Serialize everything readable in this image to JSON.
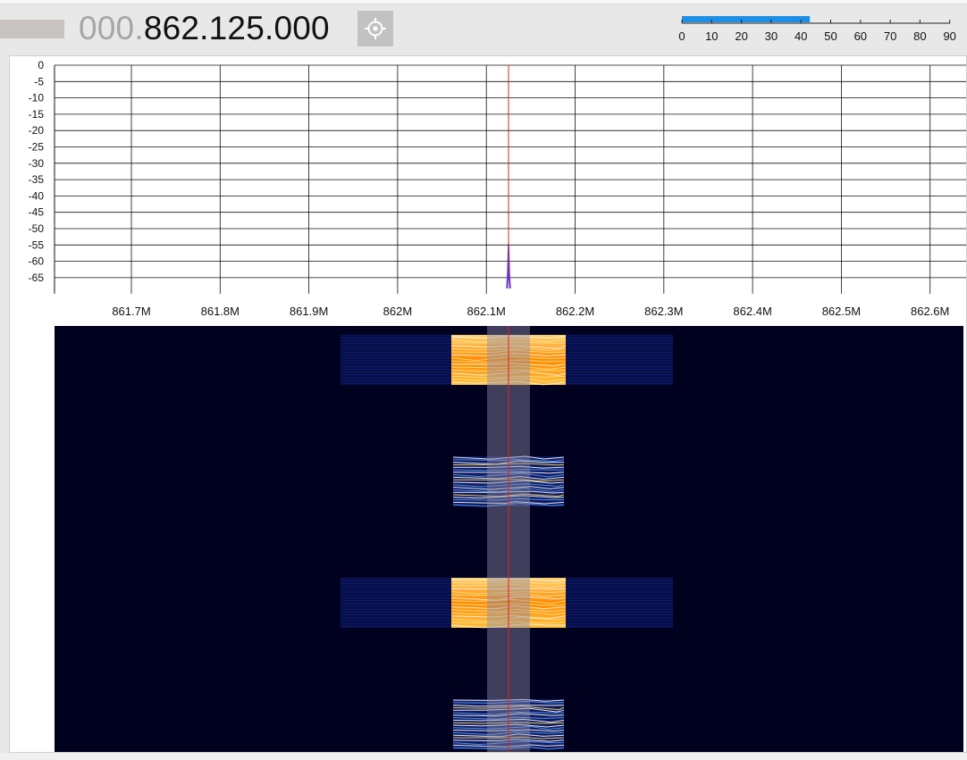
{
  "header": {
    "frequency_prefix": "000.",
    "frequency_main": "862.125.000",
    "center_button_icon": "crosshair-icon"
  },
  "smeter": {
    "ticks": [
      "0",
      "10",
      "20",
      "30",
      "40",
      "50",
      "60",
      "70",
      "80",
      "90"
    ],
    "level": 43,
    "max": 90,
    "bar_color": "#1e8fe6"
  },
  "spectrum": {
    "y_ticks": [
      "0",
      "-5",
      "-10",
      "-15",
      "-20",
      "-25",
      "-30",
      "-35",
      "-40",
      "-45",
      "-50",
      "-55",
      "-60",
      "-65"
    ],
    "x_ticks": [
      "861.7M",
      "861.8M",
      "861.9M",
      "862M",
      "862.1M",
      "862.2M",
      "862.3M",
      "862.4M",
      "862.5M",
      "862.6M"
    ],
    "tuned_line_color": "#e02020",
    "trace_color": "#3a3aff"
  },
  "waterfall": {
    "background": "#00001f",
    "filter_band_color": "#8c8ca8"
  }
}
